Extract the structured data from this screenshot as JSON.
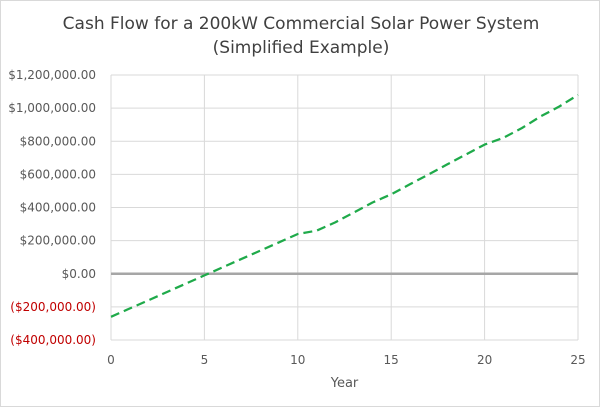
{
  "chart_data": {
    "type": "line",
    "title": [
      "Cash Flow for a 200kW Commercial Solar Power System",
      "(Simplified Example)"
    ],
    "xlabel": "Year",
    "ylabel": "",
    "xlim": [
      0,
      25
    ],
    "ylim": [
      -400000,
      1200000
    ],
    "x_ticks": [
      0,
      5,
      10,
      15,
      20,
      25
    ],
    "x_tick_labels": [
      "0",
      "5",
      "10",
      "15",
      "20",
      "25"
    ],
    "y_ticks": [
      1200000,
      1000000,
      800000,
      600000,
      400000,
      200000,
      0,
      -200000,
      -400000
    ],
    "y_tick_labels": [
      "$1,200,000.00",
      "$1,000,000.00",
      "$800,000.00",
      "$600,000.00",
      "$400,000.00",
      "$200,000.00",
      "$0.00",
      "($200,000.00)",
      "($400,000.00)"
    ],
    "grid": true,
    "legend": "none",
    "colors": {
      "series": "#1faa4a",
      "zero_line": "#a6a6a6",
      "grid": "#d9d9d9",
      "negative_tick": "#c00000"
    },
    "series": [
      {
        "x": [
          0,
          1,
          2,
          3,
          4,
          5,
          6,
          7,
          8,
          9,
          10,
          11,
          12,
          13,
          14,
          15,
          16,
          17,
          18,
          19,
          20,
          21,
          22,
          23,
          24,
          25
        ],
        "values": [
          -260000,
          -210000,
          -160000,
          -110000,
          -60000,
          -10000,
          40000,
          90000,
          140000,
          190000,
          240000,
          260000,
          310000,
          370000,
          430000,
          480000,
          540000,
          600000,
          660000,
          720000,
          780000,
          820000,
          880000,
          950000,
          1010000,
          1080000
        ]
      }
    ]
  }
}
